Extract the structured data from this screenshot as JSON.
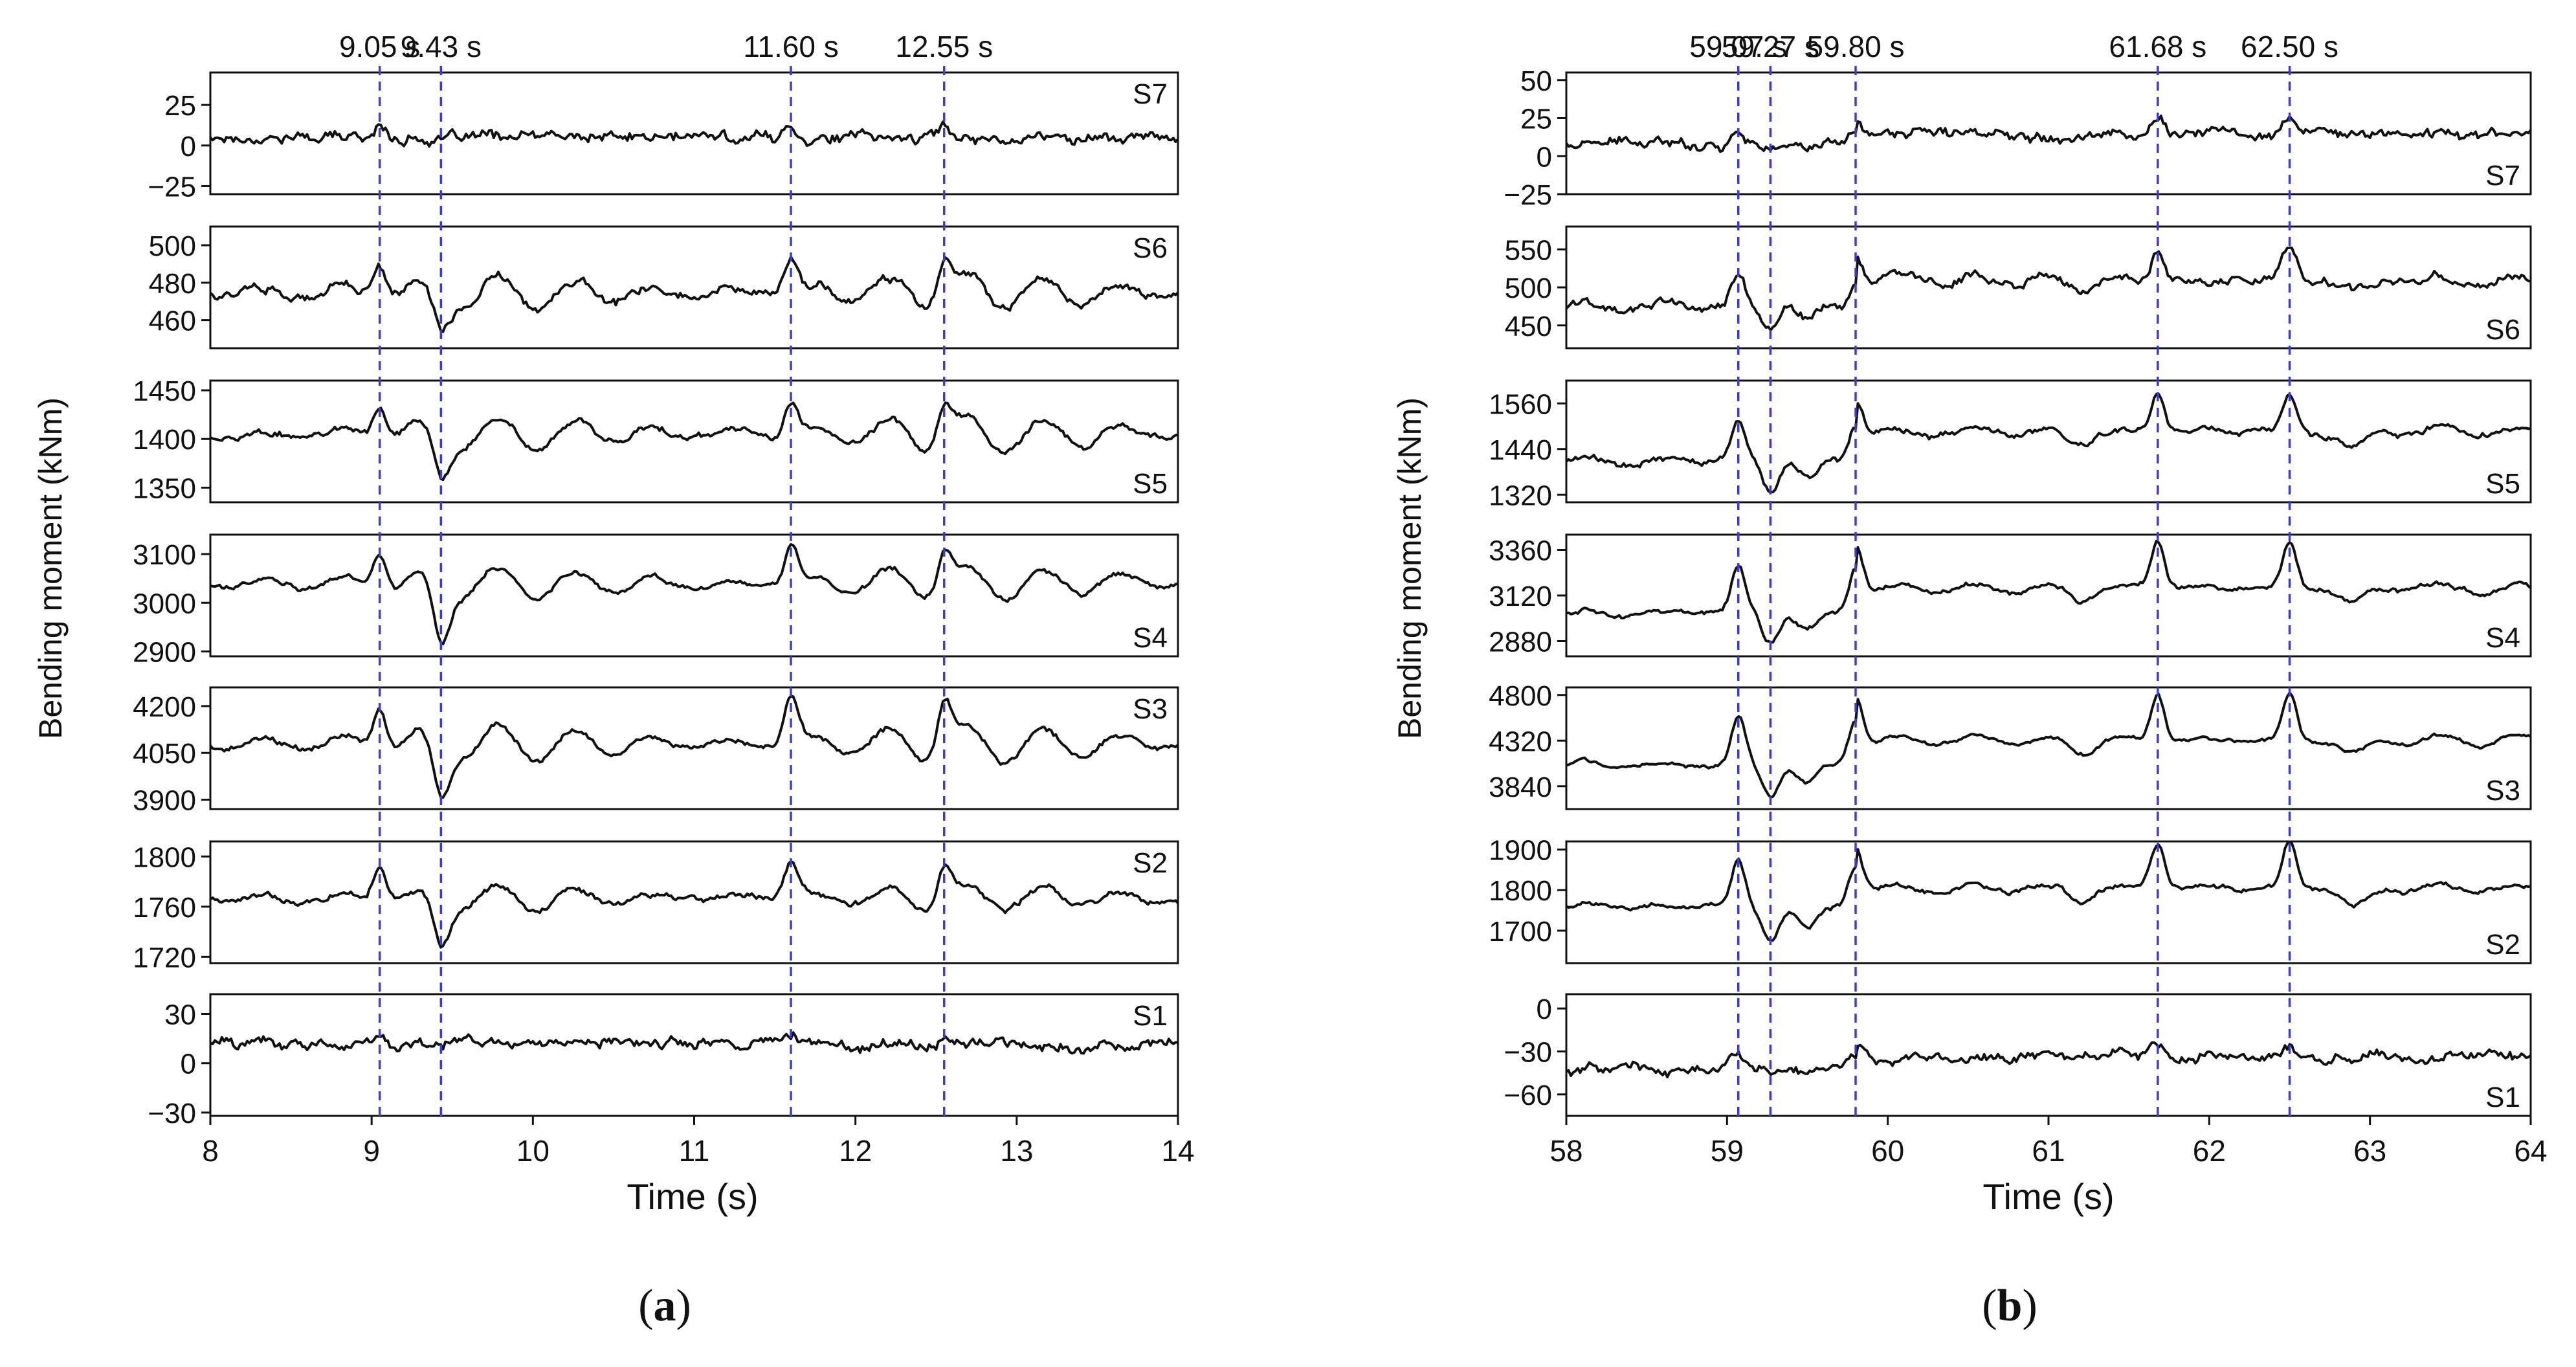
{
  "figure": {
    "colors": {
      "trace": "#111111",
      "frame": "#111111",
      "event_line": "#3b3bd6"
    },
    "panels": [
      {
        "id": "a",
        "caption": "(a)",
        "caption_letter": "a",
        "ylabel": "Bending moment (kNm)",
        "xlabel": "Time (s)"
      },
      {
        "id": "b",
        "caption": "(b)",
        "caption_letter": "b",
        "ylabel": "Bending moment (kNm)",
        "xlabel": "Time (s)"
      }
    ]
  },
  "chart_data": [
    {
      "type": "line",
      "panel": "a",
      "xlabel": "Time (s)",
      "ylabel": "Bending moment (kNm)",
      "xlim": [
        8,
        14
      ],
      "xticks": [
        8,
        9,
        10,
        11,
        12,
        13,
        14
      ],
      "events": [
        {
          "time": 9.05,
          "label": "9.05 s"
        },
        {
          "time": 9.43,
          "label": "9.43 s"
        },
        {
          "time": 11.6,
          "label": "11.60 s"
        },
        {
          "time": 12.55,
          "label": "12.55 s"
        }
      ],
      "series": [
        {
          "name": "S7",
          "name_pos": "top",
          "ylim": [
            -30,
            45
          ],
          "yticks": [
            -25,
            0,
            25
          ],
          "ytick_labels": [
            "−25",
            "0",
            "25"
          ],
          "baseline": 5,
          "noise": 3,
          "spike": 6,
          "dip": 3,
          "osc": 0,
          "hf": 4
        },
        {
          "name": "S6",
          "name_pos": "top",
          "ylim": [
            445,
            510
          ],
          "yticks": [
            460,
            480,
            500
          ],
          "ytick_labels": [
            "460",
            "480",
            "500"
          ],
          "baseline": 475,
          "noise": 2,
          "spike": 20,
          "dip": 18,
          "osc": 9,
          "hf": 3
        },
        {
          "name": "S5",
          "name_pos": "bottom",
          "ylim": [
            1335,
            1460
          ],
          "yticks": [
            1350,
            1400,
            1450
          ],
          "ytick_labels": [
            "1350",
            "1400",
            "1450"
          ],
          "baseline": 1405,
          "noise": 3,
          "spike": 35,
          "dip": 45,
          "osc": 18,
          "hf": 4
        },
        {
          "name": "S4",
          "name_pos": "bottom",
          "ylim": [
            2890,
            3140
          ],
          "yticks": [
            2900,
            3000,
            3100
          ],
          "ytick_labels": [
            "2900",
            "3000",
            "3100"
          ],
          "baseline": 3040,
          "noise": 5,
          "spike": 80,
          "dip": 120,
          "osc": 35,
          "hf": 6
        },
        {
          "name": "S3",
          "name_pos": "top",
          "ylim": [
            3870,
            4260
          ],
          "yticks": [
            3900,
            4050,
            4200
          ],
          "ytick_labels": [
            "3900",
            "4050",
            "4200"
          ],
          "baseline": 4080,
          "noise": 8,
          "spike": 150,
          "dip": 170,
          "osc": 60,
          "hf": 10
        },
        {
          "name": "S2",
          "name_pos": "top",
          "ylim": [
            1715,
            1812
          ],
          "yticks": [
            1720,
            1760,
            1800
          ],
          "ytick_labels": [
            "1720",
            "1760",
            "1800"
          ],
          "baseline": 1767,
          "noise": 2,
          "spike": 30,
          "dip": 38,
          "osc": 10,
          "hf": 3
        },
        {
          "name": "S1",
          "name_pos": "top",
          "ylim": [
            -32,
            42
          ],
          "yticks": [
            -30,
            0,
            30
          ],
          "ytick_labels": [
            "−30",
            "0",
            "30"
          ],
          "baseline": 12,
          "noise": 3,
          "spike": 5,
          "dip": 3,
          "osc": 0,
          "hf": 4
        }
      ]
    },
    {
      "type": "line",
      "panel": "b",
      "xlabel": "Time (s)",
      "ylabel": "Bending moment (kNm)",
      "xlim": [
        58,
        64
      ],
      "xticks": [
        58,
        59,
        60,
        61,
        62,
        63,
        64
      ],
      "events": [
        {
          "time": 59.07,
          "label": "59.07 s"
        },
        {
          "time": 59.27,
          "label": "59.27 s"
        },
        {
          "time": 59.8,
          "label": "59.80 s"
        },
        {
          "time": 61.68,
          "label": "61.68 s"
        },
        {
          "time": 62.5,
          "label": "62.50 s"
        }
      ],
      "series": [
        {
          "name": "S7",
          "name_pos": "bottom",
          "ylim": [
            -25,
            55
          ],
          "yticks": [
            -25,
            0,
            25,
            50
          ],
          "ytick_labels": [
            "−25",
            "0",
            "25",
            "50"
          ],
          "baseline": 8,
          "noise": 3,
          "spike": 10,
          "dip": 4,
          "osc": 0,
          "hf": 4,
          "step": 7
        },
        {
          "name": "S6",
          "name_pos": "bottom",
          "ylim": [
            420,
            580
          ],
          "yticks": [
            450,
            500,
            550
          ],
          "ytick_labels": [
            "450",
            "500",
            "550"
          ],
          "baseline": 475,
          "noise": 4,
          "spike": 40,
          "dip": 30,
          "osc": 8,
          "hf": 8,
          "step": 35
        },
        {
          "name": "S5",
          "name_pos": "bottom",
          "ylim": [
            1300,
            1620
          ],
          "yticks": [
            1320,
            1440,
            1560
          ],
          "ytick_labels": [
            "1320",
            "1440",
            "1560"
          ],
          "baseline": 1410,
          "noise": 6,
          "spike": 100,
          "dip": 80,
          "osc": 12,
          "hf": 10,
          "step": 75
        },
        {
          "name": "S4",
          "name_pos": "bottom",
          "ylim": [
            2800,
            3440
          ],
          "yticks": [
            2880,
            3120,
            3360
          ],
          "ytick_labels": [
            "2880",
            "3120",
            "3360"
          ],
          "baseline": 3030,
          "noise": 10,
          "spike": 250,
          "dip": 160,
          "osc": 25,
          "hf": 15,
          "step": 130
        },
        {
          "name": "S3",
          "name_pos": "bottom",
          "ylim": [
            3600,
            4880
          ],
          "yticks": [
            3840,
            4320,
            4800
          ],
          "ytick_labels": [
            "3840",
            "4320",
            "4800"
          ],
          "baseline": 4060,
          "noise": 15,
          "spike": 500,
          "dip": 330,
          "osc": 60,
          "hf": 25,
          "step": 260
        },
        {
          "name": "S2",
          "name_pos": "bottom",
          "ylim": [
            1620,
            1920
          ],
          "yticks": [
            1700,
            1800,
            1900
          ],
          "ytick_labels": [
            "1700",
            "1800",
            "1900"
          ],
          "baseline": 1760,
          "noise": 4,
          "spike": 110,
          "dip": 90,
          "osc": 10,
          "hf": 8,
          "step": 45
        },
        {
          "name": "S1",
          "name_pos": "bottom",
          "ylim": [
            -75,
            10
          ],
          "yticks": [
            -60,
            -30,
            0
          ],
          "ytick_labels": [
            "−60",
            "−30",
            "0"
          ],
          "baseline": -42,
          "noise": 3,
          "spike": 8,
          "dip": 3,
          "osc": 0,
          "hf": 4,
          "step": 8
        }
      ]
    }
  ]
}
